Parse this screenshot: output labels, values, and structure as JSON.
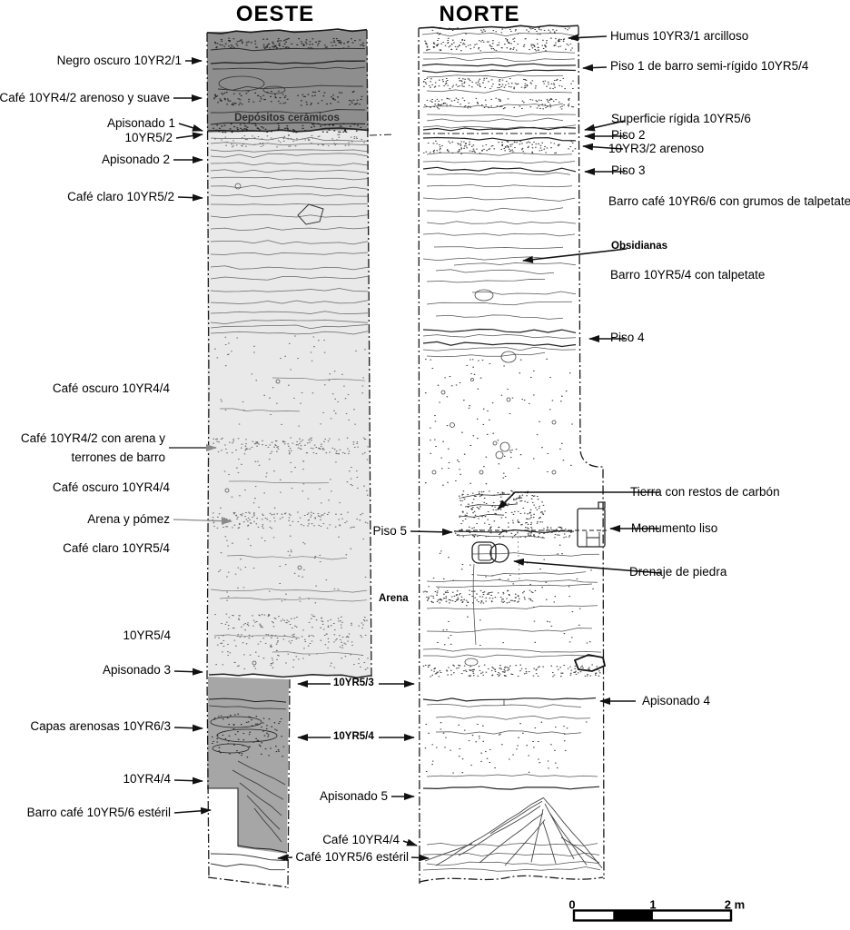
{
  "titles": {
    "oeste": "OESTE",
    "norte": "NORTE"
  },
  "oeste_labels": {
    "negro_oscuro": "Negro oscuro 10YR2/1",
    "cafe_arenoso_suave": "Café 10YR4/2 arenoso y suave",
    "apisonado_1": "Apisonado 1",
    "yr52": "10YR5/2",
    "apisonado_2": "Apisonado 2",
    "cafe_claro_52": "Café claro 10YR5/2",
    "cafe_oscuro_44_a": "Café oscuro 10YR4/4",
    "cafe_con_arena_l1": "Café 10YR4/2 con arena y",
    "cafe_con_arena_l2": "terrones de barro",
    "cafe_oscuro_44_b": "Café oscuro 10YR4/4",
    "arena_pomez": "Arena y pómez",
    "cafe_claro_54": "Café claro 10YR5/4",
    "yr54": "10YR5/4",
    "apisonado_3": "Apisonado 3",
    "capas_arenosas": "Capas arenosas 10YR6/3",
    "yr44": "10YR4/4",
    "barro_cafe_esteril": "Barro café 10YR5/6 estéril",
    "depositos_ceramicos": "Depósitos cerámicos"
  },
  "middle_labels": {
    "arena": "Arena",
    "yr53": "10YR5/3",
    "yr54": "10YR5/4",
    "piso_5": "Piso 5",
    "apisonado_5": "Apisonado 5",
    "cafe_44": "Café 10YR4/4",
    "cafe_esteril": "Café 10YR5/6 estéril"
  },
  "norte_labels": {
    "humus": "Humus 10YR3/1 arcilloso",
    "piso_1": "Piso 1 de barro semi-rígido 10YR5/4",
    "superficie": "Superficie rígida 10YR5/6",
    "piso_2": "Piso 2",
    "yr32_arenoso": "10YR3/2 arenoso",
    "piso_3": "Piso 3",
    "barro_grumos": "Barro café 10YR6/6 con grumos de talpetate",
    "obsidianas": "Obsidianas",
    "barro_talpetate": "Barro 10YR5/4 con talpetate",
    "piso_4": "Piso 4",
    "tierra_carbon": "Tierra con restos de carbón",
    "monumento": "Monumento liso",
    "drenaje": "Drenaje de piedra",
    "apisonado_4": "Apisonado 4"
  },
  "scale_bar": {
    "t0": "0",
    "t1": "1",
    "t2": "2 m"
  },
  "colors": {
    "top_band": "#8e8e8e",
    "light_band": "#e9e9e9",
    "bottom_band": "#a6a6a6",
    "ink": "#111111",
    "gray_arrow": "#8a8a8a"
  }
}
